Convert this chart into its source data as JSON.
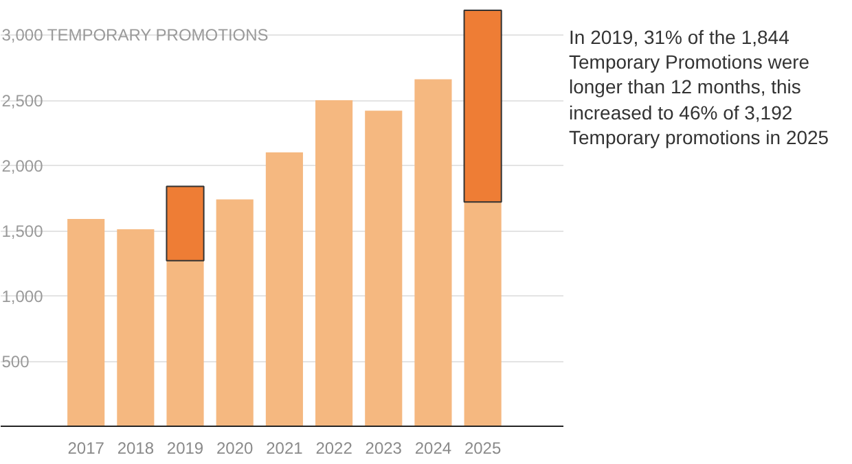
{
  "chart_data": {
    "type": "bar",
    "stacked": true,
    "categories": [
      "2017",
      "2018",
      "2019",
      "2020",
      "2021",
      "2022",
      "2023",
      "2024",
      "2025"
    ],
    "series": [
      {
        "color": "#f5b880",
        "values": [
          1590,
          1510,
          1270,
          1740,
          2100,
          2500,
          2420,
          2660,
          1720
        ]
      },
      {
        "color": "#ee7d35",
        "values": [
          null,
          null,
          570,
          null,
          null,
          null,
          null,
          null,
          1470
        ]
      }
    ],
    "ylim": [
      0,
      3200
    ],
    "yticks": [
      500,
      "1,000",
      "1,500",
      "2,000",
      "2,500",
      {
        "value": 3000,
        "label": "3,000 TEMPORARY PROMOTIONS"
      }
    ],
    "grid": "y",
    "annotations": [
      "In 2019, 31% of the 1,844 Temporary Promotions were longer than 12 months, this increased to 46% of 3,192 Temporary promotions in 2025"
    ]
  }
}
